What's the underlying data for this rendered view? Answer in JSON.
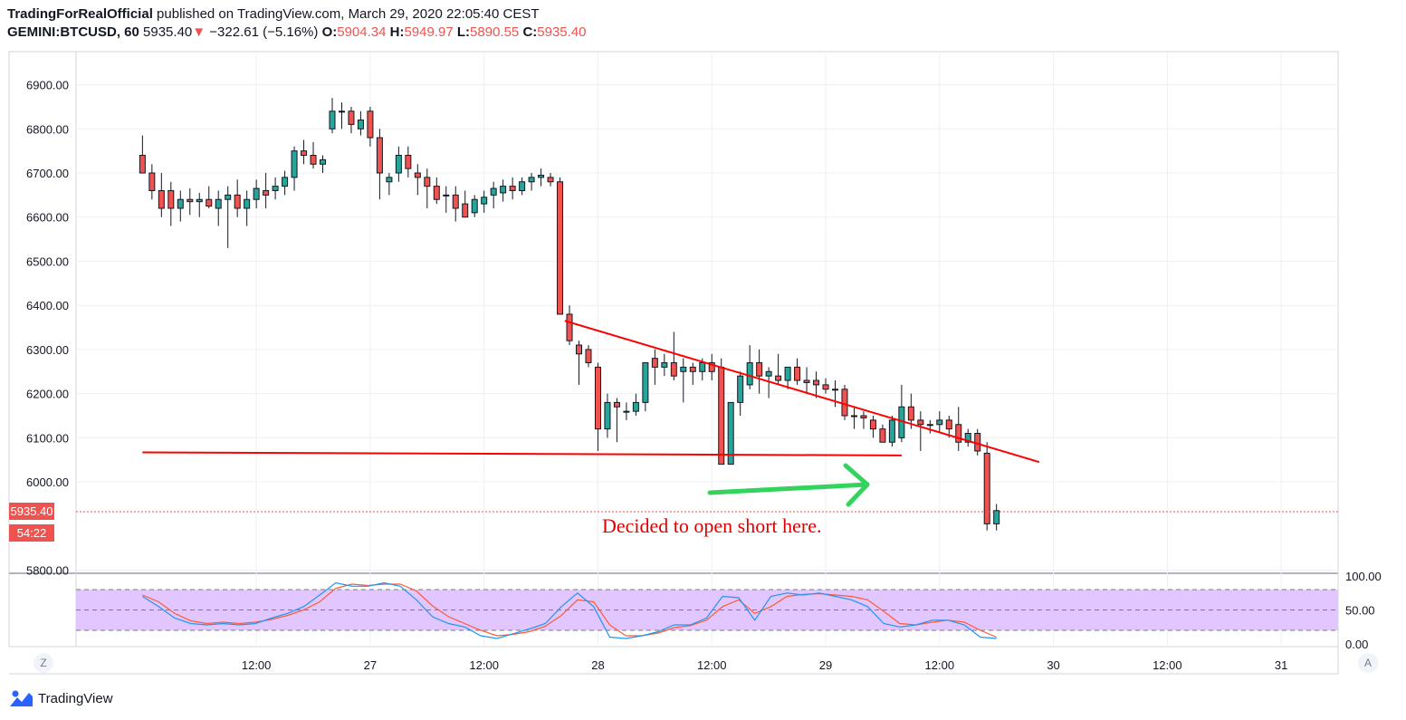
{
  "header": {
    "author": "TradingForRealOfficial",
    "published_text": " published on TradingView.com, March 29, 2020 22:05:40 CEST",
    "symbol": "GEMINI:BTCUSD, 60",
    "last": "5935.40",
    "change": "−322.61 (−5.16%)",
    "o_label": "O:",
    "o_value": "5904.34",
    "h_label": "H:",
    "h_value": "5949.97",
    "l_label": "L:",
    "l_value": "5890.55",
    "c_label": "C:",
    "c_value": "5935.40"
  },
  "price_badge": "5935.40",
  "countdown_badge": "54:22",
  "annotation": "Decided to open short here.",
  "footer": {
    "brand": "TradingView"
  },
  "corner_left": "Z",
  "corner_right": "A",
  "colors": {
    "up": "#26a69a",
    "down": "#ef5350",
    "wick": "#131722",
    "trend": "#ff0000",
    "arrow": "#33d35e",
    "stoch_k": "#2196f3",
    "stoch_d": "#ff5a36",
    "stoch_band": "#e1c6ff"
  },
  "chart_data": {
    "type": "candlestick",
    "ylim": [
      5795,
      6975
    ],
    "yticks": [
      5800,
      6000,
      6100,
      6200,
      6300,
      6400,
      6500,
      6600,
      6700,
      6800,
      6900
    ],
    "ytick_labels": [
      "5800.00",
      "6000.00",
      "6100.00",
      "6200.00",
      "6300.00",
      "6400.00",
      "6500.00",
      "6600.00",
      "6700.00",
      "6800.00",
      "6900.00"
    ],
    "x_range_hours": [
      -7,
      126
    ],
    "xticks": [
      {
        "h": 12,
        "label": "12:00"
      },
      {
        "h": 24,
        "label": "27"
      },
      {
        "h": 36,
        "label": "12:00"
      },
      {
        "h": 48,
        "label": "28"
      },
      {
        "h": 60,
        "label": "12:00"
      },
      {
        "h": 72,
        "label": "29"
      },
      {
        "h": 84,
        "label": "12:00"
      },
      {
        "h": 96,
        "label": "30"
      },
      {
        "h": 108,
        "label": "12:00"
      },
      {
        "h": 120,
        "label": "31"
      },
      {
        "h": 132,
        "label": "12:00"
      }
    ],
    "candles": [
      [
        6740,
        6785,
        6705,
        6700
      ],
      [
        6700,
        6720,
        6640,
        6660
      ],
      [
        6660,
        6700,
        6600,
        6620
      ],
      [
        6660,
        6680,
        6580,
        6620
      ],
      [
        6620,
        6660,
        6590,
        6640
      ],
      [
        6640,
        6665,
        6605,
        6635
      ],
      [
        6635,
        6655,
        6600,
        6640
      ],
      [
        6640,
        6670,
        6620,
        6625
      ],
      [
        6620,
        6660,
        6580,
        6640
      ],
      [
        6640,
        6670,
        6530,
        6650
      ],
      [
        6650,
        6685,
        6600,
        6620
      ],
      [
        6620,
        6660,
        6580,
        6640
      ],
      [
        6640,
        6685,
        6620,
        6665
      ],
      [
        6660,
        6700,
        6620,
        6650
      ],
      [
        6660,
        6690,
        6640,
        6670
      ],
      [
        6670,
        6705,
        6650,
        6690
      ],
      [
        6690,
        6760,
        6660,
        6750
      ],
      [
        6750,
        6775,
        6720,
        6740
      ],
      [
        6740,
        6770,
        6710,
        6720
      ],
      [
        6720,
        6740,
        6700,
        6730
      ],
      [
        6800,
        6870,
        6790,
        6840
      ],
      [
        6840,
        6860,
        6800,
        6840
      ],
      [
        6840,
        6850,
        6790,
        6810
      ],
      [
        6800,
        6840,
        6785,
        6820
      ],
      [
        6840,
        6850,
        6760,
        6780
      ],
      [
        6780,
        6800,
        6640,
        6700
      ],
      [
        6680,
        6700,
        6650,
        6690
      ],
      [
        6700,
        6760,
        6680,
        6740
      ],
      [
        6740,
        6760,
        6690,
        6710
      ],
      [
        6700,
        6720,
        6650,
        6690
      ],
      [
        6690,
        6710,
        6620,
        6670
      ],
      [
        6670,
        6690,
        6630,
        6640
      ],
      [
        6650,
        6670,
        6610,
        6650
      ],
      [
        6650,
        6670,
        6590,
        6620
      ],
      [
        6630,
        6660,
        6600,
        6600
      ],
      [
        6610,
        6650,
        6600,
        6640
      ],
      [
        6630,
        6660,
        6610,
        6645
      ],
      [
        6650,
        6680,
        6620,
        6665
      ],
      [
        6655,
        6685,
        6635,
        6670
      ],
      [
        6670,
        6690,
        6640,
        6660
      ],
      [
        6660,
        6690,
        6650,
        6680
      ],
      [
        6680,
        6700,
        6660,
        6690
      ],
      [
        6690,
        6710,
        6670,
        6695
      ],
      [
        6690,
        6700,
        6670,
        6680
      ],
      [
        6680,
        6690,
        6380,
        6380
      ],
      [
        6380,
        6400,
        6310,
        6320
      ],
      [
        6310,
        6320,
        6220,
        6290
      ],
      [
        6300,
        6310,
        6260,
        6270
      ],
      [
        6260,
        6270,
        6070,
        6120
      ],
      [
        6120,
        6200,
        6100,
        6180
      ],
      [
        6180,
        6190,
        6090,
        6170
      ],
      [
        6160,
        6180,
        6140,
        6160
      ],
      [
        6160,
        6200,
        6150,
        6180
      ],
      [
        6180,
        6270,
        6160,
        6270
      ],
      [
        6280,
        6300,
        6220,
        6260
      ],
      [
        6260,
        6290,
        6240,
        6270
      ],
      [
        6270,
        6340,
        6230,
        6240
      ],
      [
        6250,
        6280,
        6180,
        6260
      ],
      [
        6260,
        6270,
        6220,
        6250
      ],
      [
        6250,
        6280,
        6230,
        6270
      ],
      [
        6270,
        6290,
        6230,
        6250
      ],
      [
        6260,
        6280,
        6040,
        6040
      ],
      [
        6040,
        6180,
        6040,
        6180
      ],
      [
        6180,
        6250,
        6150,
        6240
      ],
      [
        6220,
        6310,
        6210,
        6270
      ],
      [
        6270,
        6300,
        6200,
        6240
      ],
      [
        6240,
        6260,
        6190,
        6250
      ],
      [
        6240,
        6290,
        6220,
        6230
      ],
      [
        6230,
        6260,
        6210,
        6260
      ],
      [
        6260,
        6280,
        6220,
        6230
      ],
      [
        6230,
        6260,
        6200,
        6225
      ],
      [
        6230,
        6250,
        6190,
        6220
      ],
      [
        6220,
        6235,
        6200,
        6210
      ],
      [
        6210,
        6230,
        6170,
        6210
      ],
      [
        6210,
        6220,
        6140,
        6150
      ],
      [
        6150,
        6170,
        6120,
        6150
      ],
      [
        6150,
        6160,
        6120,
        6145
      ],
      [
        6140,
        6150,
        6100,
        6120
      ],
      [
        6120,
        6130,
        6090,
        6090
      ],
      [
        6090,
        6150,
        6080,
        6140
      ],
      [
        6100,
        6220,
        6090,
        6170
      ],
      [
        6170,
        6200,
        6120,
        6140
      ],
      [
        6140,
        6160,
        6070,
        6130
      ],
      [
        6130,
        6140,
        6110,
        6130
      ],
      [
        6130,
        6160,
        6110,
        6140
      ],
      [
        6140,
        6150,
        6100,
        6120
      ],
      [
        6130,
        6170,
        6070,
        6090
      ],
      [
        6090,
        6120,
        6080,
        6110
      ],
      [
        6110,
        6120,
        6060,
        6070
      ],
      [
        6065,
        6090,
        5890,
        5905
      ],
      [
        5905,
        5950,
        5890,
        5935
      ]
    ],
    "trendlines": [
      {
        "points": [
          [
            44.5,
            6365
          ],
          [
            94.5,
            6045
          ]
        ],
        "color": "#ff0000"
      },
      {
        "points": [
          [
            0,
            6067
          ],
          [
            80,
            6060
          ]
        ],
        "color": "#ff0000"
      }
    ],
    "stoch_k": [
      70,
      55,
      38,
      30,
      28,
      30,
      28,
      30,
      38,
      45,
      55,
      72,
      90,
      85,
      85,
      90,
      85,
      65,
      40,
      30,
      25,
      12,
      8,
      15,
      22,
      30,
      55,
      75,
      55,
      10,
      8,
      12,
      18,
      28,
      28,
      38,
      70,
      68,
      35,
      70,
      75,
      72,
      75,
      70,
      65,
      55,
      30,
      25,
      28,
      35,
      35,
      28,
      10,
      8
    ],
    "stoch_d": [
      72,
      62,
      45,
      34,
      30,
      32,
      30,
      32,
      36,
      42,
      50,
      62,
      82,
      88,
      86,
      88,
      88,
      78,
      56,
      40,
      30,
      20,
      12,
      14,
      18,
      26,
      42,
      65,
      62,
      28,
      12,
      12,
      16,
      24,
      27,
      35,
      55,
      65,
      45,
      55,
      70,
      73,
      74,
      72,
      70,
      65,
      48,
      30,
      28,
      32,
      35,
      32,
      20,
      10
    ],
    "stoch_ylim": [
      0,
      100
    ],
    "stoch_ticks": [
      "100.00",
      "50.00",
      "0.00"
    ]
  }
}
